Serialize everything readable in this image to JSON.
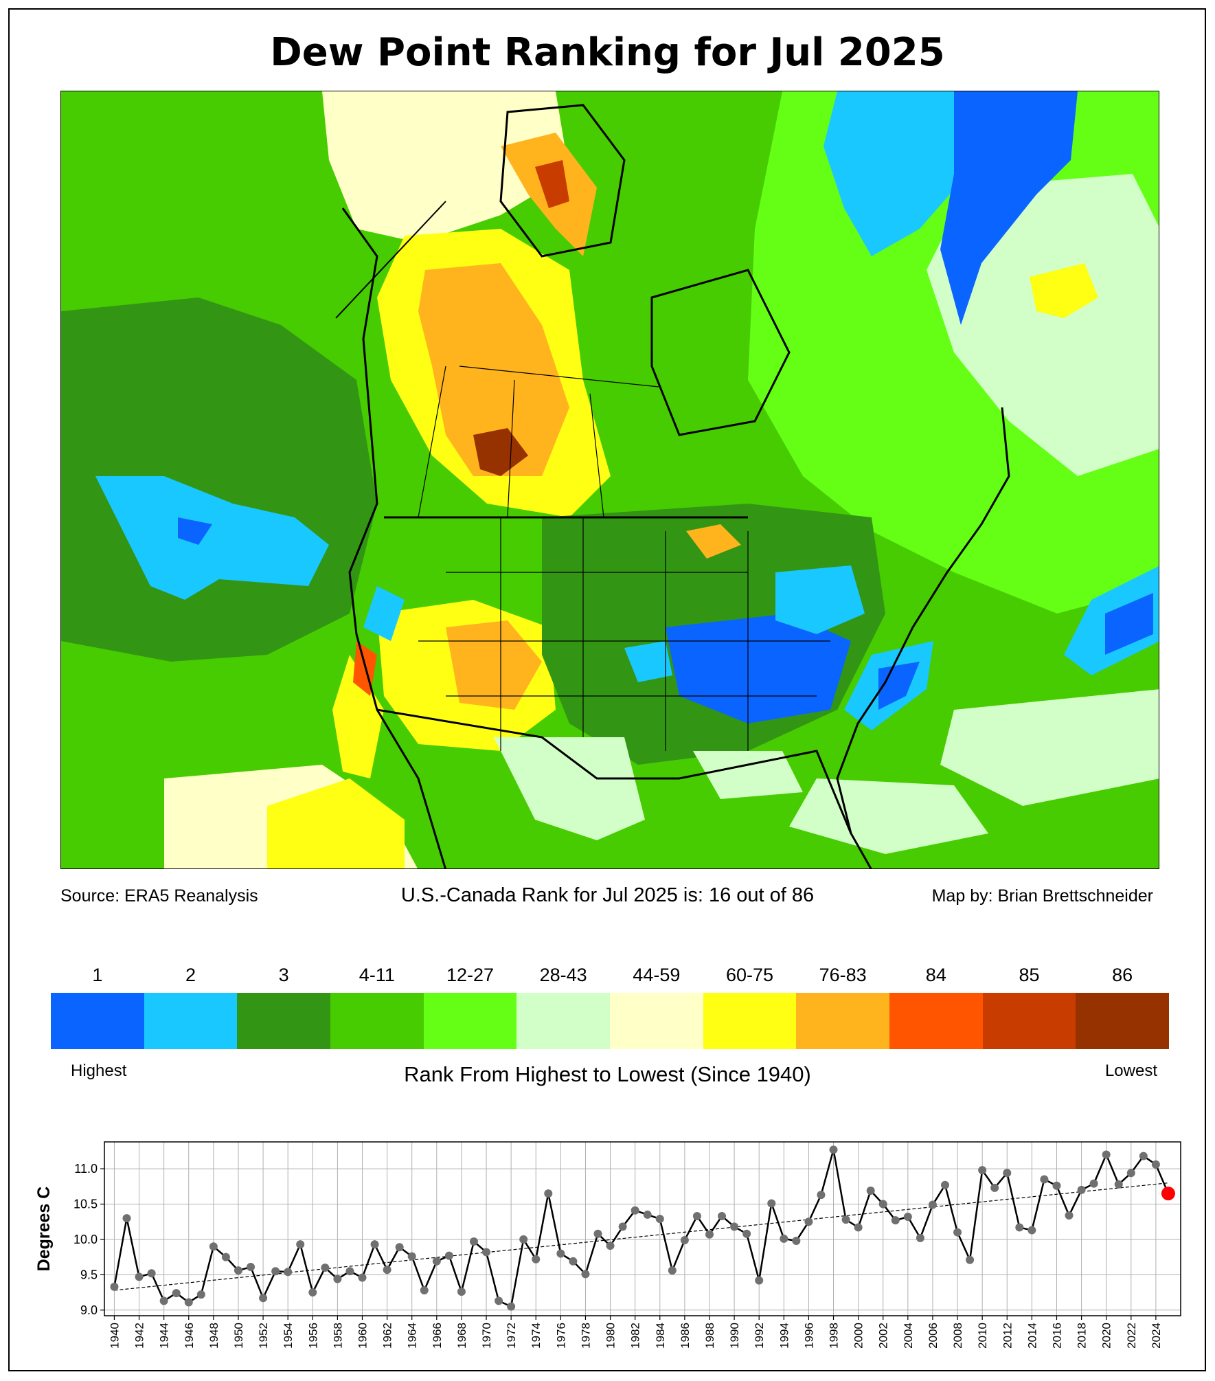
{
  "title": "Dew Point Ranking for Jul 2025",
  "map": {
    "source": "Source: ERA5 Reanalysis",
    "rank_text": "U.S.-Canada Rank for Jul 2025 is: 16 out of 86",
    "map_by": "Map by: Brian Brettschneider"
  },
  "colorbar": {
    "categories": [
      "1",
      "2",
      "3",
      "4-11",
      "12-27",
      "28-43",
      "44-59",
      "60-75",
      "76-83",
      "84",
      "85",
      "86"
    ],
    "colors": [
      "#0a64ff",
      "#19c8ff",
      "#329614",
      "#46cc00",
      "#64ff14",
      "#d2ffc8",
      "#ffffc8",
      "#ffff14",
      "#ffb41e",
      "#ff5500",
      "#c83c00",
      "#963200"
    ],
    "highest_label": "Highest",
    "lowest_label": "Lowest",
    "title": "Rank From Highest to Lowest (Since 1940)"
  },
  "chart_data": {
    "type": "line",
    "title": "",
    "xlabel": "",
    "ylabel": "Degrees C",
    "x": [
      1940,
      1941,
      1942,
      1943,
      1944,
      1945,
      1946,
      1947,
      1948,
      1949,
      1950,
      1951,
      1952,
      1953,
      1954,
      1955,
      1956,
      1957,
      1958,
      1959,
      1960,
      1961,
      1962,
      1963,
      1964,
      1965,
      1966,
      1967,
      1968,
      1969,
      1970,
      1971,
      1972,
      1973,
      1974,
      1975,
      1976,
      1977,
      1978,
      1979,
      1980,
      1981,
      1982,
      1983,
      1984,
      1985,
      1986,
      1987,
      1988,
      1989,
      1990,
      1991,
      1992,
      1993,
      1994,
      1995,
      1996,
      1997,
      1998,
      1999,
      2000,
      2001,
      2002,
      2003,
      2004,
      2005,
      2006,
      2007,
      2008,
      2009,
      2010,
      2011,
      2012,
      2013,
      2014,
      2015,
      2016,
      2017,
      2018,
      2019,
      2020,
      2021,
      2022,
      2023,
      2024,
      2025
    ],
    "series": [
      {
        "values": [
          9.33,
          10.3,
          9.47,
          9.52,
          9.13,
          9.24,
          9.11,
          9.22,
          9.9,
          9.75,
          9.56,
          9.61,
          9.17,
          9.55,
          9.54,
          9.93,
          9.25,
          9.6,
          9.44,
          9.55,
          9.46,
          9.93,
          9.57,
          9.89,
          9.76,
          9.28,
          9.69,
          9.77,
          9.26,
          9.97,
          9.82,
          9.13,
          9.05,
          10.0,
          9.72,
          10.65,
          9.8,
          9.69,
          9.51,
          10.08,
          9.91,
          10.18,
          10.41,
          10.35,
          10.29,
          9.56,
          9.99,
          10.33,
          10.07,
          10.33,
          10.18,
          10.08,
          9.42,
          10.51,
          10.01,
          9.98,
          10.25,
          10.63,
          11.27,
          10.28,
          10.17,
          10.69,
          10.5,
          10.27,
          10.32,
          10.02,
          10.49,
          10.77,
          10.1,
          9.71,
          10.98,
          10.73,
          10.94,
          10.17,
          10.13,
          10.85,
          10.76,
          10.34,
          10.7,
          10.79,
          11.2,
          10.78,
          10.94,
          11.18,
          11.06,
          10.65
        ]
      }
    ],
    "trend": {
      "start": [
        1940,
        9.28
      ],
      "end": [
        2025,
        10.8
      ]
    },
    "highlight": {
      "x": 2025,
      "y": 10.65,
      "color": "#ff0000"
    },
    "marker_color": "#707070",
    "xticks": [
      1940,
      1942,
      1944,
      1946,
      1948,
      1950,
      1952,
      1954,
      1956,
      1958,
      1960,
      1962,
      1964,
      1966,
      1968,
      1970,
      1972,
      1974,
      1976,
      1978,
      1980,
      1982,
      1984,
      1986,
      1988,
      1990,
      1992,
      1994,
      1996,
      1998,
      2000,
      2002,
      2004,
      2006,
      2008,
      2010,
      2012,
      2014,
      2016,
      2018,
      2020,
      2022,
      2024
    ],
    "yticks": [
      "9.0",
      "9.5",
      "10.0",
      "10.5",
      "11.0"
    ],
    "xlim": [
      1939.2,
      2026
    ],
    "ylim": [
      8.92,
      11.38
    ],
    "grid": true
  }
}
